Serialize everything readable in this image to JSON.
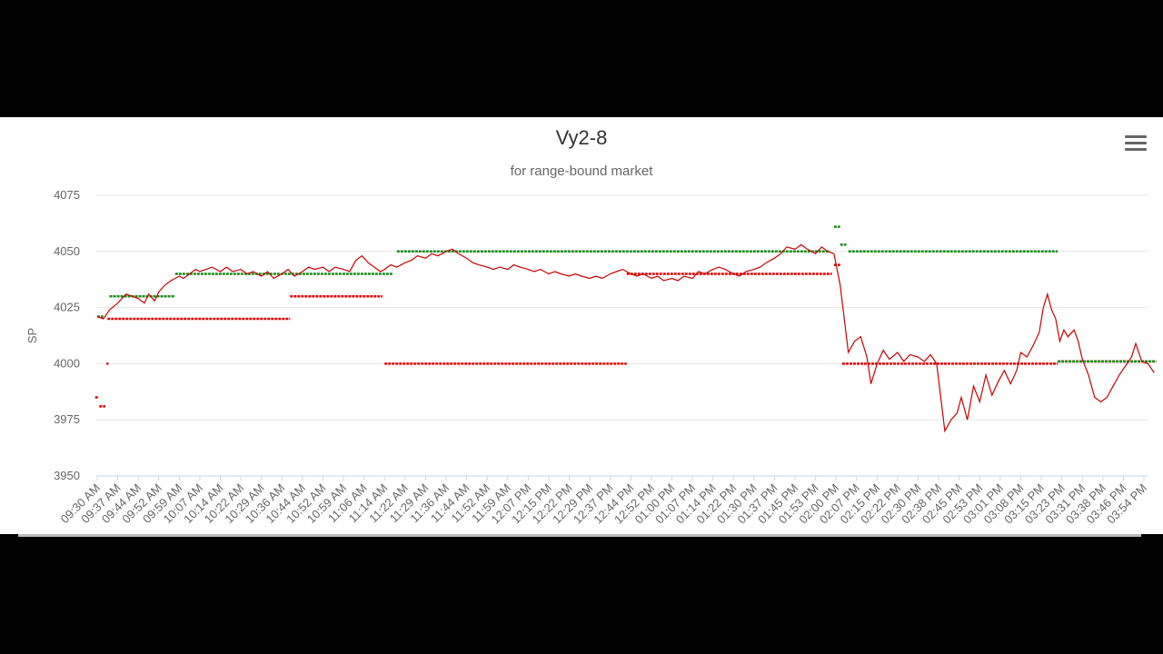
{
  "chart_data": {
    "type": "line",
    "title": "Vy2-8",
    "subtitle": "for range-bound market",
    "ylabel": "SP",
    "ylim": [
      3950,
      4075
    ],
    "yticks": [
      3950,
      3975,
      4000,
      4025,
      4050,
      4075
    ],
    "grid": true,
    "x_tick_labels": [
      "09:30 AM",
      "09:37 AM",
      "09:44 AM",
      "09:52 AM",
      "09:59 AM",
      "10:07 AM",
      "10:14 AM",
      "10:22 AM",
      "10:29 AM",
      "10:36 AM",
      "10:44 AM",
      "10:52 AM",
      "10:59 AM",
      "11:06 AM",
      "11:14 AM",
      "11:22 AM",
      "11:29 AM",
      "11:36 AM",
      "11:44 AM",
      "11:52 AM",
      "11:59 AM",
      "12:07 PM",
      "12:15 PM",
      "12:22 PM",
      "12:29 PM",
      "12:37 PM",
      "12:44 PM",
      "12:52 PM",
      "01:00 PM",
      "01:07 PM",
      "01:14 PM",
      "01:22 PM",
      "01:30 PM",
      "01:37 PM",
      "01:45 PM",
      "01:53 PM",
      "02:00 PM",
      "02:07 PM",
      "02:15 PM",
      "02:22 PM",
      "02:30 PM",
      "02:38 PM",
      "02:45 PM",
      "02:53 PM",
      "03:01 PM",
      "03:08 PM",
      "03:15 PM",
      "03:23 PM",
      "03:31 PM",
      "03:38 PM",
      "03:46 PM",
      "03:54 PM"
    ],
    "price_series": {
      "color": "#cc0000",
      "points": [
        [
          0,
          4021
        ],
        [
          0.3,
          4020
        ],
        [
          0.6,
          4024
        ],
        [
          1,
          4027
        ],
        [
          1.4,
          4031
        ],
        [
          1.7,
          4030
        ],
        [
          2,
          4029
        ],
        [
          2.3,
          4027
        ],
        [
          2.5,
          4031
        ],
        [
          2.8,
          4028
        ],
        [
          3,
          4032
        ],
        [
          3.3,
          4035
        ],
        [
          3.6,
          4037
        ],
        [
          4,
          4039
        ],
        [
          4.2,
          4038
        ],
        [
          4.5,
          4040
        ],
        [
          4.8,
          4042
        ],
        [
          5,
          4041
        ],
        [
          5.3,
          4042
        ],
        [
          5.6,
          4043
        ],
        [
          6,
          4041
        ],
        [
          6.3,
          4043
        ],
        [
          6.6,
          4041
        ],
        [
          7,
          4042
        ],
        [
          7.3,
          4040
        ],
        [
          7.6,
          4041
        ],
        [
          8,
          4039
        ],
        [
          8.3,
          4041
        ],
        [
          8.6,
          4038
        ],
        [
          9,
          4040
        ],
        [
          9.3,
          4042
        ],
        [
          9.6,
          4039
        ],
        [
          10,
          4041
        ],
        [
          10.3,
          4043
        ],
        [
          10.6,
          4042
        ],
        [
          11,
          4043
        ],
        [
          11.3,
          4041
        ],
        [
          11.6,
          4043
        ],
        [
          12,
          4042
        ],
        [
          12.3,
          4041
        ],
        [
          12.6,
          4046
        ],
        [
          12.9,
          4048
        ],
        [
          13.2,
          4045
        ],
        [
          13.5,
          4043
        ],
        [
          13.8,
          4041
        ],
        [
          14,
          4042
        ],
        [
          14.3,
          4044
        ],
        [
          14.6,
          4043
        ],
        [
          15,
          4045
        ],
        [
          15.3,
          4046
        ],
        [
          15.6,
          4048
        ],
        [
          16,
          4047
        ],
        [
          16.3,
          4049
        ],
        [
          16.6,
          4048
        ],
        [
          17,
          4050
        ],
        [
          17.3,
          4051
        ],
        [
          17.6,
          4049
        ],
        [
          18,
          4047
        ],
        [
          18.3,
          4045
        ],
        [
          18.6,
          4044
        ],
        [
          19,
          4043
        ],
        [
          19.3,
          4042
        ],
        [
          19.6,
          4043
        ],
        [
          20,
          4042
        ],
        [
          20.3,
          4044
        ],
        [
          20.6,
          4043
        ],
        [
          21,
          4042
        ],
        [
          21.3,
          4041
        ],
        [
          21.6,
          4042
        ],
        [
          22,
          4040
        ],
        [
          22.3,
          4041
        ],
        [
          22.6,
          4040
        ],
        [
          23,
          4039
        ],
        [
          23.3,
          4040
        ],
        [
          23.6,
          4039
        ],
        [
          24,
          4038
        ],
        [
          24.3,
          4039
        ],
        [
          24.6,
          4038
        ],
        [
          25,
          4040
        ],
        [
          25.3,
          4041
        ],
        [
          25.6,
          4042
        ],
        [
          26,
          4040
        ],
        [
          26.3,
          4039
        ],
        [
          26.6,
          4040
        ],
        [
          27,
          4038
        ],
        [
          27.3,
          4039
        ],
        [
          27.6,
          4037
        ],
        [
          28,
          4038
        ],
        [
          28.3,
          4037
        ],
        [
          28.6,
          4039
        ],
        [
          29,
          4038
        ],
        [
          29.3,
          4041
        ],
        [
          29.6,
          4040
        ],
        [
          30,
          4042
        ],
        [
          30.3,
          4043
        ],
        [
          30.6,
          4042
        ],
        [
          31,
          4040
        ],
        [
          31.3,
          4039
        ],
        [
          31.6,
          4041
        ],
        [
          32,
          4042
        ],
        [
          32.3,
          4043
        ],
        [
          32.6,
          4045
        ],
        [
          33,
          4047
        ],
        [
          33.3,
          4049
        ],
        [
          33.6,
          4052
        ],
        [
          34,
          4051
        ],
        [
          34.3,
          4053
        ],
        [
          34.6,
          4051
        ],
        [
          35,
          4049
        ],
        [
          35.3,
          4052
        ],
        [
          35.6,
          4050
        ],
        [
          35.9,
          4049
        ],
        [
          36.2,
          4035
        ],
        [
          36.4,
          4020
        ],
        [
          36.6,
          4005
        ],
        [
          36.9,
          4010
        ],
        [
          37.2,
          4012
        ],
        [
          37.5,
          4003
        ],
        [
          37.7,
          3991
        ],
        [
          38,
          4000
        ],
        [
          38.3,
          4006
        ],
        [
          38.6,
          4002
        ],
        [
          39,
          4005
        ],
        [
          39.3,
          4001
        ],
        [
          39.6,
          4004
        ],
        [
          40,
          4003
        ],
        [
          40.3,
          4001
        ],
        [
          40.6,
          4004
        ],
        [
          40.9,
          4000
        ],
        [
          41.1,
          3985
        ],
        [
          41.3,
          3970
        ],
        [
          41.6,
          3975
        ],
        [
          41.9,
          3978
        ],
        [
          42.1,
          3985
        ],
        [
          42.4,
          3975
        ],
        [
          42.7,
          3990
        ],
        [
          43,
          3983
        ],
        [
          43.3,
          3995
        ],
        [
          43.6,
          3986
        ],
        [
          43.9,
          3992
        ],
        [
          44.2,
          3997
        ],
        [
          44.5,
          3991
        ],
        [
          44.8,
          3997
        ],
        [
          45,
          4005
        ],
        [
          45.3,
          4003
        ],
        [
          45.6,
          4008
        ],
        [
          45.9,
          4014
        ],
        [
          46.1,
          4025
        ],
        [
          46.3,
          4031
        ],
        [
          46.5,
          4024
        ],
        [
          46.7,
          4020
        ],
        [
          46.9,
          4010
        ],
        [
          47.1,
          4015
        ],
        [
          47.3,
          4012
        ],
        [
          47.6,
          4015
        ],
        [
          47.8,
          4010
        ],
        [
          48,
          4002
        ],
        [
          48.3,
          3995
        ],
        [
          48.6,
          3985
        ],
        [
          48.9,
          3983
        ],
        [
          49.2,
          3985
        ],
        [
          49.5,
          3990
        ],
        [
          49.8,
          3995
        ],
        [
          50.1,
          3999
        ],
        [
          50.4,
          4003
        ],
        [
          50.6,
          4009
        ],
        [
          50.9,
          4001
        ],
        [
          51.2,
          4000
        ],
        [
          51.5,
          3996
        ]
      ]
    },
    "green_level_segments": [
      {
        "from": 0,
        "to": 0.3,
        "value": 4021
      },
      {
        "from": 0.6,
        "to": 3.8,
        "value": 4030
      },
      {
        "from": 3.8,
        "to": 14.4,
        "value": 4040
      },
      {
        "from": 14.6,
        "to": 35.7,
        "value": 4050
      },
      {
        "from": 35.9,
        "to": 36.2,
        "value": 4061
      },
      {
        "from": 36.2,
        "to": 36.5,
        "value": 4053
      },
      {
        "from": 36.6,
        "to": 46.8,
        "value": 4050
      },
      {
        "from": 46.8,
        "to": 51.6,
        "value": 4001
      }
    ],
    "red_level_segments": [
      {
        "from": -0.1,
        "to": 0.05,
        "value": 3985
      },
      {
        "from": 0.1,
        "to": 0.4,
        "value": 3981
      },
      {
        "from": 0.45,
        "to": 0.55,
        "value": 4000
      },
      {
        "from": 0.5,
        "to": 9.4,
        "value": 4020
      },
      {
        "from": 9.4,
        "to": 13.9,
        "value": 4030
      },
      {
        "from": 14,
        "to": 25.8,
        "value": 4000
      },
      {
        "from": 25.8,
        "to": 35.8,
        "value": 4040
      },
      {
        "from": 35.9,
        "to": 36.2,
        "value": 4044
      },
      {
        "from": 36.3,
        "to": 46.8,
        "value": 4000
      },
      {
        "from": 46.8,
        "to": 51.6,
        "value": 4001
      }
    ]
  }
}
